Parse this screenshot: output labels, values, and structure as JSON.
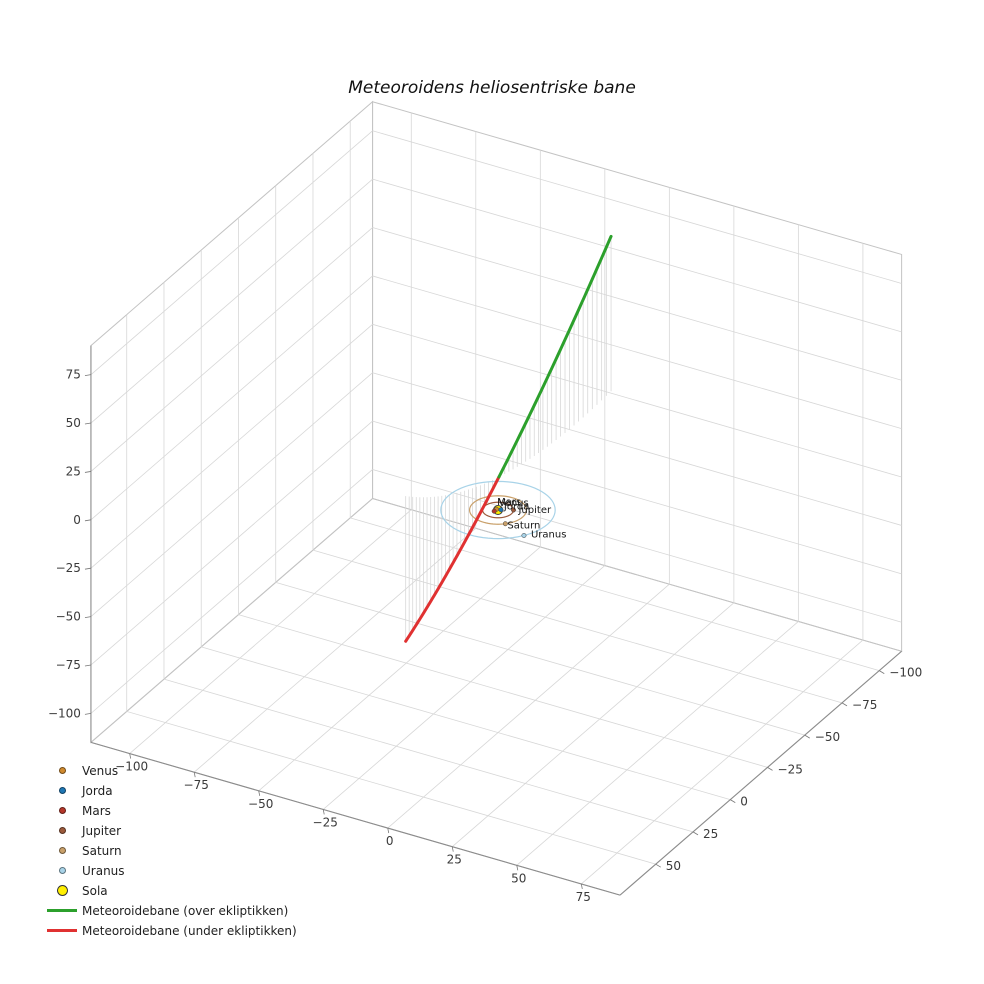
{
  "chart_data": {
    "type": "line3d",
    "title": "Meteoroidens heliosentriske bane",
    "background": "#ffffff",
    "view": {
      "elev": 30,
      "azim": -60,
      "z_aspect": 0.75,
      "y_display_inverted": true
    },
    "axes": {
      "x": {
        "range": [
          -115,
          90
        ],
        "ticks": [
          -100,
          -75,
          -50,
          -25,
          0,
          25,
          50,
          75
        ]
      },
      "y": {
        "range": [
          -115,
          74
        ],
        "ticks": [
          -100,
          -75,
          -50,
          -25,
          0,
          25,
          50
        ]
      },
      "z": {
        "range": [
          -115,
          90
        ],
        "ticks": [
          75,
          50,
          25,
          0,
          -25,
          -50,
          -75,
          -100
        ]
      }
    },
    "grid": {
      "on": true,
      "grid_color": "#d7d7d7",
      "pane_edge_color": "#c3c3c3",
      "axis_edge_color": "#8c8c8c",
      "tick_color": "#777777"
    },
    "sun": {
      "label": "Sola",
      "color": "#ffef00",
      "edge_color": "#3a3a3a"
    },
    "planets": [
      {
        "name": "Venus",
        "color": "#d08a2e",
        "orbit_radius": 0.72,
        "angle_deg": 200,
        "label_offset": [
          2,
          -6
        ]
      },
      {
        "name": "Jorda",
        "color": "#1f77b4",
        "orbit_radius": 1.0,
        "angle_deg": 320,
        "label_offset": [
          3,
          -3
        ]
      },
      {
        "name": "Mars",
        "color": "#b5372a",
        "orbit_radius": 1.52,
        "angle_deg": 118,
        "label_offset": [
          3,
          -9
        ]
      },
      {
        "name": "Jupiter",
        "color": "#9c5a3c",
        "orbit_radius": 5.2,
        "angle_deg": -30,
        "label_offset": [
          5,
          0
        ]
      },
      {
        "name": "Saturn",
        "color": "#c9a06a",
        "orbit_radius": 9.54,
        "angle_deg": 45,
        "label_offset": [
          2,
          2
        ]
      },
      {
        "name": "Uranus",
        "color": "#a8d3e8",
        "orbit_radius": 19.19,
        "angle_deg": 33,
        "label_offset": [
          7,
          -1
        ]
      }
    ],
    "trajectory": {
      "above": {
        "label": "Meteoroidebane (over ekliptikken)",
        "color": "#2ca02c"
      },
      "below": {
        "label": "Meteoroidebane (under ekliptikken)",
        "color": "#e03131"
      },
      "start_xyz": [
        -7,
        -88,
        80
      ],
      "control_xyz": [
        -2,
        0,
        0
      ],
      "end_xyz": [
        -31.5,
        7.4,
        -75
      ],
      "stem_color": "#d8d8d8"
    },
    "legend_position": "lower-left"
  }
}
